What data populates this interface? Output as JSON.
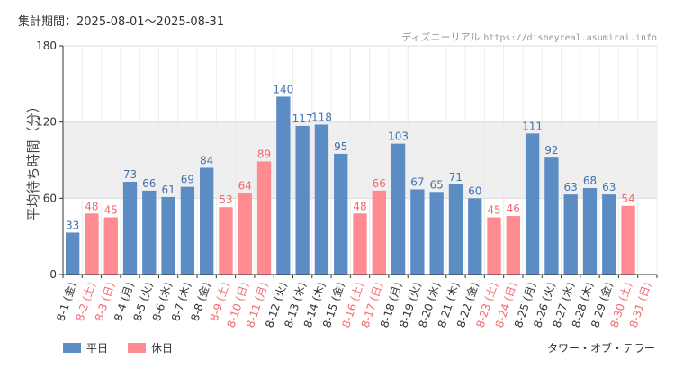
{
  "period": "集計期間：2025-08-01～2025-08-31",
  "credit": {
    "site": "ディズニーリアル",
    "url": "https://disneyreal.asumirai.info"
  },
  "attraction": "タワー・オブ・テラー",
  "colors": {
    "weekday": "#5b8cc4",
    "holiday": "#ff8a8f",
    "band": "#efefef",
    "grid": "#dddddd"
  },
  "chart_data": {
    "type": "bar",
    "ylabel": "平均待ち時間（分）",
    "ylim": [
      0,
      180
    ],
    "yticks": [
      0,
      60,
      120,
      180
    ],
    "grid": true,
    "legend_position": "bottom-left",
    "series": [
      {
        "name": "平日",
        "key": "weekday"
      },
      {
        "name": "休日",
        "key": "holiday"
      }
    ],
    "categories": [
      "8-1 (金)",
      "8-2 (土)",
      "8-3 (日)",
      "8-4 (月)",
      "8-5 (火)",
      "8-6 (水)",
      "8-7 (木)",
      "8-8 (金)",
      "8-9 (土)",
      "8-10 (日)",
      "8-11 (月)",
      "8-12 (火)",
      "8-13 (水)",
      "8-14 (木)",
      "8-15 (金)",
      "8-16 (土)",
      "8-17 (日)",
      "8-18 (月)",
      "8-19 (火)",
      "8-20 (水)",
      "8-21 (木)",
      "8-22 (金)",
      "8-23 (土)",
      "8-24 (日)",
      "8-25 (月)",
      "8-26 (火)",
      "8-27 (水)",
      "8-28 (木)",
      "8-29 (金)",
      "8-30 (土)",
      "8-31 (日)"
    ],
    "values": [
      33,
      48,
      45,
      73,
      66,
      61,
      69,
      84,
      53,
      64,
      89,
      140,
      117,
      118,
      95,
      48,
      66,
      103,
      67,
      65,
      71,
      60,
      45,
      46,
      111,
      92,
      63,
      68,
      63,
      54,
      null
    ],
    "day_type": [
      "weekday",
      "holiday",
      "holiday",
      "weekday",
      "weekday",
      "weekday",
      "weekday",
      "weekday",
      "holiday",
      "holiday",
      "holiday",
      "weekday",
      "weekday",
      "weekday",
      "weekday",
      "holiday",
      "holiday",
      "weekday",
      "weekday",
      "weekday",
      "weekday",
      "weekday",
      "holiday",
      "holiday",
      "weekday",
      "weekday",
      "weekday",
      "weekday",
      "weekday",
      "holiday",
      "holiday"
    ]
  }
}
